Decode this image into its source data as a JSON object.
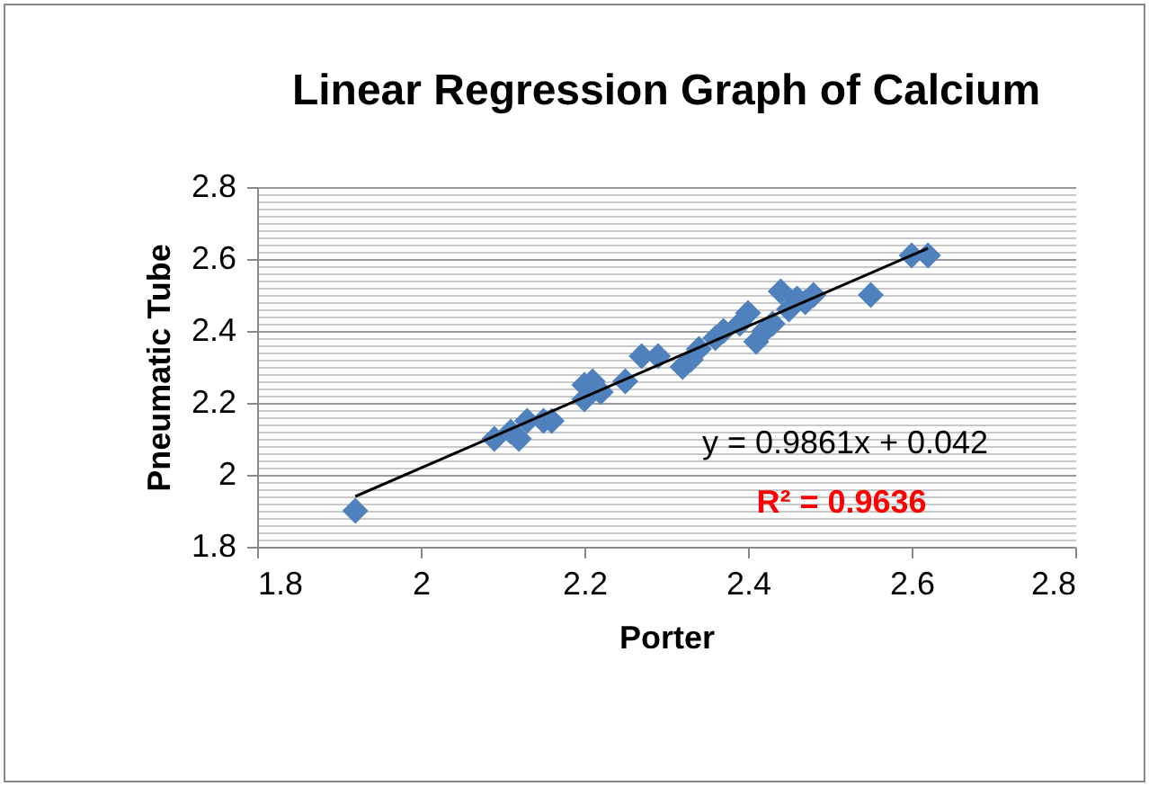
{
  "chart_data": {
    "type": "scatter",
    "title": "Linear Regression Graph of Calcium",
    "xlabel": "Porter",
    "ylabel": "Pneumatic Tube",
    "xlim": [
      1.8,
      2.8
    ],
    "xticks": [
      1.8,
      2,
      2.2,
      2.4,
      2.6,
      2.8
    ],
    "ylim": [
      1.8,
      2.8
    ],
    "yticks": [
      1.8,
      {
        "value": 1.82,
        "label": null
      },
      {
        "value": 1.84,
        "label": null
      },
      {
        "value": 1.86,
        "label": null
      },
      {
        "value": 1.88,
        "label": null
      },
      {
        "value": 1.9,
        "label": null
      },
      {
        "value": 1.92,
        "label": null
      },
      {
        "value": 1.94,
        "label": null
      },
      {
        "value": 1.96,
        "label": null
      },
      {
        "value": 1.98,
        "label": null
      },
      2,
      {
        "value": 2.02,
        "label": null
      },
      {
        "value": 2.04,
        "label": null
      },
      {
        "value": 2.06,
        "label": null
      },
      {
        "value": 2.08,
        "label": null
      },
      {
        "value": 2.1,
        "label": null
      },
      {
        "value": 2.12,
        "label": null
      },
      {
        "value": 2.14,
        "label": null
      },
      {
        "value": 2.16,
        "label": null
      },
      {
        "value": 2.18,
        "label": null
      },
      2.2,
      {
        "value": 2.22,
        "label": null
      },
      {
        "value": 2.24,
        "label": null
      },
      {
        "value": 2.26,
        "label": null
      },
      {
        "value": 2.28,
        "label": null
      },
      {
        "value": 2.3,
        "label": null
      },
      {
        "value": 2.32,
        "label": null
      },
      {
        "value": 2.34,
        "label": null
      },
      {
        "value": 2.36,
        "label": null
      },
      {
        "value": 2.38,
        "label": null
      },
      2.4,
      {
        "value": 2.42,
        "label": null
      },
      {
        "value": 2.44,
        "label": null
      },
      {
        "value": 2.46,
        "label": null
      },
      {
        "value": 2.48,
        "label": null
      },
      {
        "value": 2.5,
        "label": null
      },
      {
        "value": 2.52,
        "label": null
      },
      {
        "value": 2.54,
        "label": null
      },
      {
        "value": 2.56,
        "label": null
      },
      {
        "value": 2.58,
        "label": null
      },
      2.6,
      {
        "value": 2.62,
        "label": null
      },
      {
        "value": 2.64,
        "label": null
      },
      {
        "value": 2.66,
        "label": null
      },
      {
        "value": 2.68,
        "label": null
      },
      {
        "value": 2.7,
        "label": null
      },
      {
        "value": 2.72,
        "label": null
      },
      {
        "value": 2.74,
        "label": null
      },
      {
        "value": 2.76,
        "label": null
      },
      {
        "value": 2.78,
        "label": null
      },
      2.8
    ],
    "grid": "y",
    "marker": "diamond",
    "series": [
      {
        "color": "#4f81bd",
        "x": [
          1.92,
          2.09,
          2.11,
          2.12,
          2.13,
          2.15,
          2.16,
          2.2,
          2.2,
          2.21,
          2.22,
          2.25,
          2.27,
          2.29,
          2.32,
          2.33,
          2.34,
          2.36,
          2.37,
          2.39,
          2.4,
          2.41,
          2.42,
          2.43,
          2.44,
          2.45,
          2.46,
          2.47,
          2.48,
          2.55,
          2.6,
          2.62
        ],
        "values": [
          1.9,
          2.1,
          2.12,
          2.1,
          2.15,
          2.15,
          2.15,
          2.21,
          2.25,
          2.26,
          2.23,
          2.26,
          2.33,
          2.33,
          2.3,
          2.32,
          2.35,
          2.38,
          2.4,
          2.42,
          2.45,
          2.37,
          2.4,
          2.42,
          2.51,
          2.46,
          2.49,
          2.48,
          2.5,
          2.5,
          2.61,
          2.61
        ]
      },
      {
        "type": "line",
        "marker": "none",
        "color": "#000000",
        "x": [
          1.92,
          2.62
        ],
        "values": [
          1.94,
          2.63
        ]
      }
    ],
    "annotations": [
      "y = 0.9861x + 0.042",
      "R² = 0.9636"
    ]
  }
}
